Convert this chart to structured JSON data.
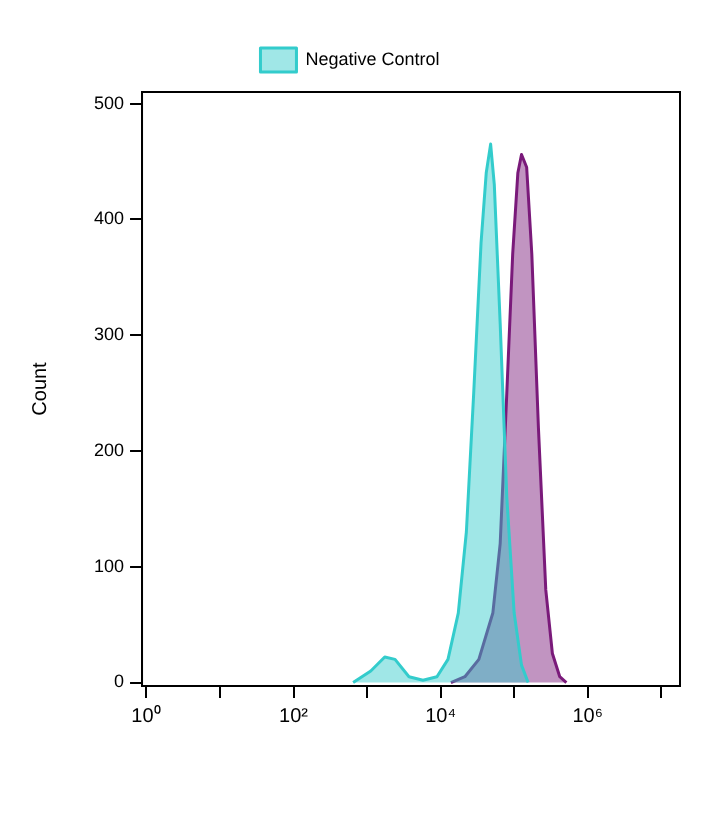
{
  "chart_data": {
    "type": "area",
    "ylabel": "Count",
    "log": "x",
    "legend": "top",
    "marker": "none",
    "xlim": [
      0.87,
      18000000
    ],
    "ylim": [
      -3,
      510
    ],
    "xticks": [
      {
        "value": 1,
        "label": "10⁰"
      },
      {
        "value": 10,
        "label": null
      },
      {
        "value": 100,
        "label": "10²"
      },
      {
        "value": 1000,
        "label": null
      },
      {
        "value": 10000,
        "label": "10⁴"
      },
      {
        "value": 100000,
        "label": null
      },
      {
        "value": 1000000,
        "label": "10⁶"
      },
      {
        "value": 10000000,
        "label": null
      }
    ],
    "yticks": [
      0,
      100,
      200,
      300,
      400,
      500
    ],
    "series": [
      {
        "name": "Negative Control",
        "color": "#33cccc",
        "x": [
          646,
          1122,
          1738,
          2399,
          3715,
          5754,
          8913,
          12590,
          17380,
          22390,
          28180,
          35480,
          41690,
          47860,
          53700,
          64570,
          79430,
          100000,
          125900,
          154900
        ],
        "values": [
          0,
          10,
          22,
          20,
          5,
          2,
          5,
          20,
          60,
          130,
          250,
          380,
          440,
          465,
          430,
          310,
          160,
          60,
          15,
          0
        ]
      },
      {
        "color": "#7a1a7a",
        "x": [
          13800,
          21380,
          33110,
          51290,
          64570,
          79430,
          95500,
          112200,
          125900,
          147900,
          173800,
          213800,
          269200,
          331100,
          416900,
          512900
        ],
        "values": [
          0,
          5,
          20,
          60,
          120,
          250,
          370,
          440,
          456,
          445,
          370,
          220,
          80,
          25,
          5,
          0
        ]
      }
    ]
  }
}
